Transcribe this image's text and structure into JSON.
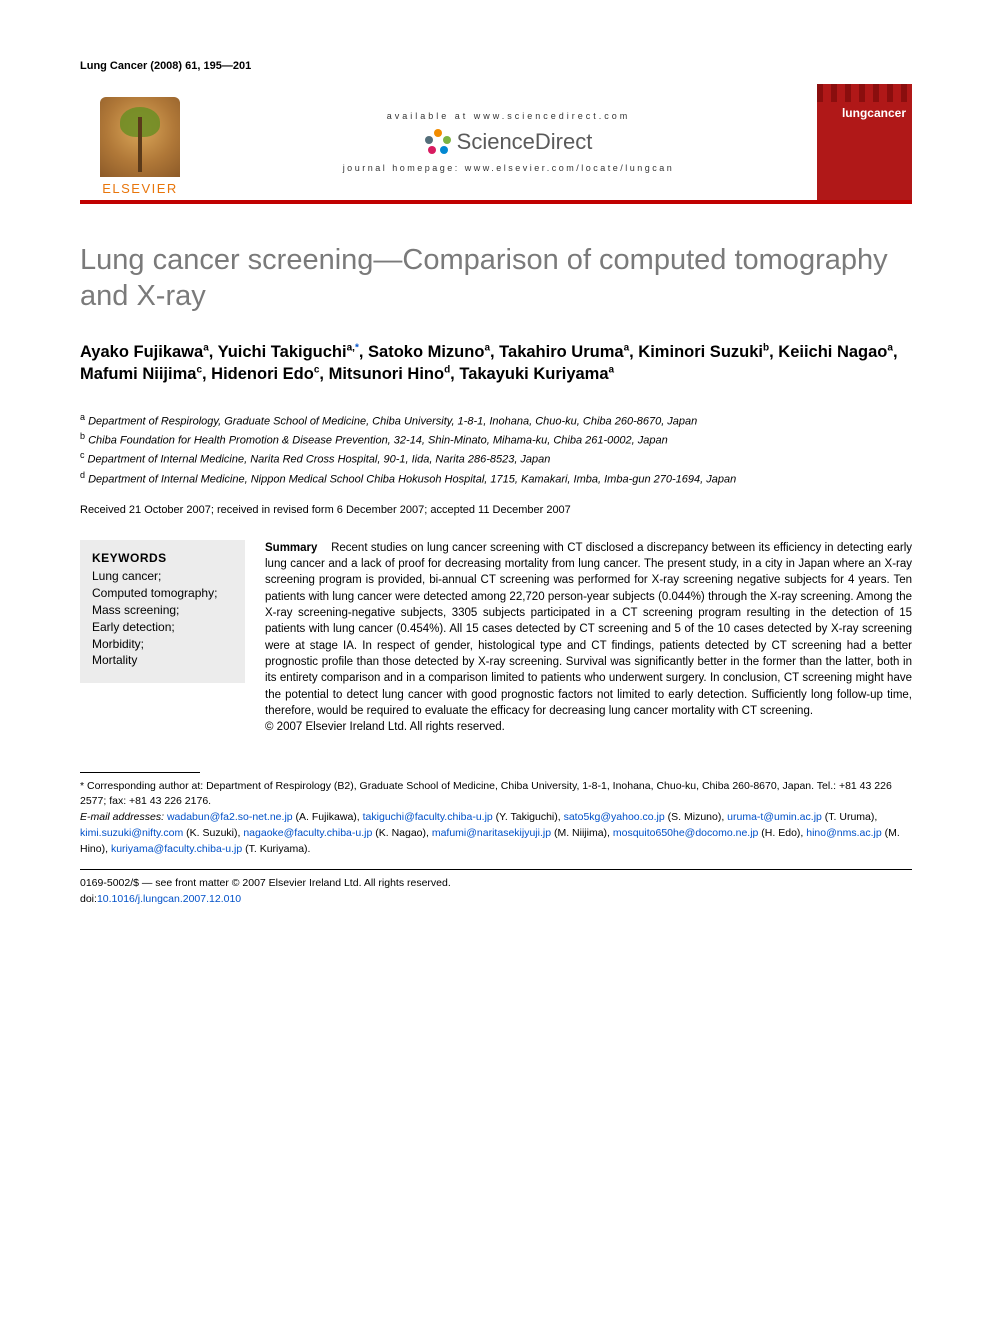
{
  "colors": {
    "rule_red": "#c00000",
    "title_gray": "#7a7a7a",
    "link_blue": "#0050c8",
    "keywords_bg": "#ececec",
    "elsevier_orange": "#e8750a",
    "cover_red": "#b01818"
  },
  "running_header": "Lung Cancer (2008) 61, 195—201",
  "masthead": {
    "publisher": "ELSEVIER",
    "available_at": "available at www.sciencedirect.com",
    "sciencedirect": "ScienceDirect",
    "homepage_label": "journal homepage: www.elsevier.com/locate/lungcan",
    "journal_cover_title": "lungcancer"
  },
  "title": "Lung cancer screening—Comparison of computed tomography and X-ray",
  "authors_html": "Ayako Fujikawa<sup>a</sup>, Yuichi Takiguchi<sup>a,</sup><sup><a>*</a></sup>, Satoko Mizuno<sup>a</sup>, Takahiro Uruma<sup>a</sup>, Kiminori Suzuki<sup>b</sup>, Keiichi Nagao<sup>a</sup>, Mafumi Niijima<sup>c</sup>, Hidenori Edo<sup>c</sup>, Mitsunori Hino<sup>d</sup>, Takayuki Kuriyama<sup>a</sup>",
  "affiliations": [
    "a Department of Respirology, Graduate School of Medicine, Chiba University, 1-8-1, Inohana, Chuo-ku, Chiba 260-8670, Japan",
    "b Chiba Foundation for Health Promotion & Disease Prevention, 32-14, Shin-Minato, Mihama-ku, Chiba 261-0002, Japan",
    "c Department of Internal Medicine, Narita Red Cross Hospital, 90-1, Iida, Narita 286-8523, Japan",
    "d Department of Internal Medicine, Nippon Medical School Chiba Hokusoh Hospital, 1715, Kamakari, Imba, Imba-gun 270-1694, Japan"
  ],
  "history": "Received 21 October 2007; received in revised form 6 December 2007; accepted 11 December 2007",
  "keywords": {
    "heading": "KEYWORDS",
    "items": [
      "Lung cancer;",
      "Computed tomography;",
      "Mass screening;",
      "Early detection;",
      "Morbidity;",
      "Mortality"
    ]
  },
  "summary": {
    "lead": "Summary",
    "body": "Recent studies on lung cancer screening with CT disclosed a discrepancy between its efficiency in detecting early lung cancer and a lack of proof for decreasing mortality from lung cancer. The present study, in a city in Japan where an X-ray screening program is provided, bi-annual CT screening was performed for X-ray screening negative subjects for 4 years. Ten patients with lung cancer were detected among 22,720 person-year subjects (0.044%) through the X-ray screening. Among the X-ray screening-negative subjects, 3305 subjects participated in a CT screening program resulting in the detection of 15 patients with lung cancer (0.454%). All 15 cases detected by CT screening and 5 of the 10 cases detected by X-ray screening were at stage IA. In respect of gender, histological type and CT findings, patients detected by CT screening had a better prognostic profile than those detected by X-ray screening. Survival was significantly better in the former than the latter, both in its entirety comparison and in a comparison limited to patients who underwent surgery. In conclusion, CT screening might have the potential to detect lung cancer with good prognostic factors not limited to early detection. Sufficiently long follow-up time, therefore, would be required to evaluate the efficacy for decreasing lung cancer mortality with CT screening.",
    "copyright": "© 2007 Elsevier Ireland Ltd. All rights reserved."
  },
  "footnotes": {
    "corresponding": "* Corresponding author at: Department of Respirology (B2), Graduate School of Medicine, Chiba University, 1-8-1, Inohana, Chuo-ku, Chiba 260-8670, Japan. Tel.: +81 43 226 2577; fax: +81 43 226 2176.",
    "emails_label": "E-mail addresses:",
    "emails": [
      {
        "addr": "wadabun@fa2.so-net.ne.jp",
        "who": "(A. Fujikawa)"
      },
      {
        "addr": "takiguchi@faculty.chiba-u.jp",
        "who": "(Y. Takiguchi)"
      },
      {
        "addr": "sato5kg@yahoo.co.jp",
        "who": "(S. Mizuno)"
      },
      {
        "addr": "uruma-t@umin.ac.jp",
        "who": "(T. Uruma)"
      },
      {
        "addr": "kimi.suzuki@nifty.com",
        "who": "(K. Suzuki)"
      },
      {
        "addr": "nagaoke@faculty.chiba-u.jp",
        "who": "(K. Nagao)"
      },
      {
        "addr": "mafumi@naritasekijyuji.jp",
        "who": "(M. Niijima)"
      },
      {
        "addr": "mosquito650he@docomo.ne.jp",
        "who": "(H. Edo)"
      },
      {
        "addr": "hino@nms.ac.jp",
        "who": "(M. Hino)"
      },
      {
        "addr": "kuriyama@faculty.chiba-u.jp",
        "who": "(T. Kuriyama)"
      }
    ]
  },
  "bottom": {
    "issn_line": "0169-5002/$ — see front matter © 2007 Elsevier Ireland Ltd. All rights reserved.",
    "doi_prefix": "doi:",
    "doi": "10.1016/j.lungcan.2007.12.010"
  }
}
